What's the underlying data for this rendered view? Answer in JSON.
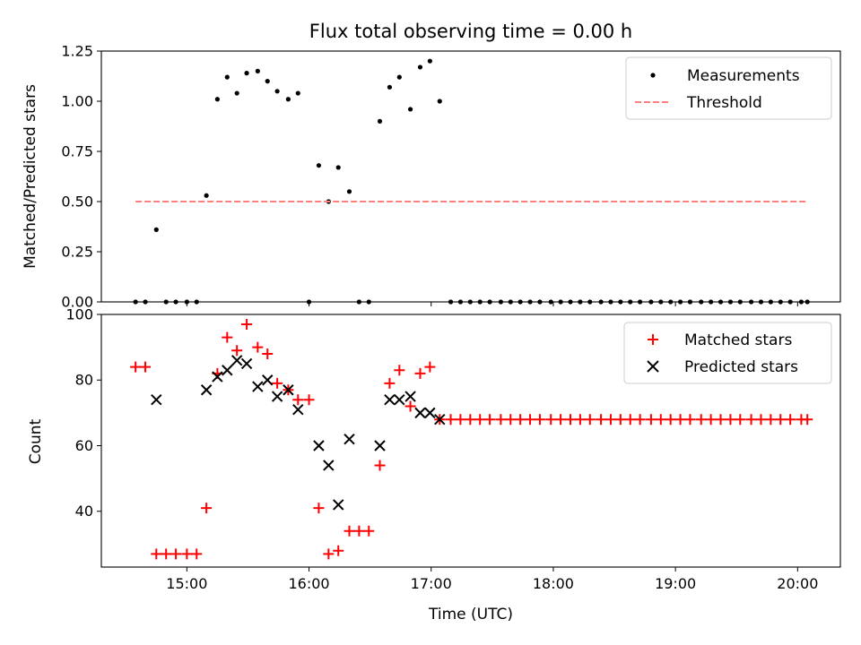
{
  "chart_data": [
    {
      "type": "scatter",
      "title": "Flux total observing time = 0.00 h",
      "xlabel": "",
      "ylabel": "Matched/Predicted stars",
      "xlim": [
        14.3,
        20.35
      ],
      "ylim": [
        0,
        1.25
      ],
      "yticks": [
        0,
        0.25,
        0.5,
        0.75,
        1.0,
        1.25
      ],
      "ytick_labels": [
        "0.00",
        "0.25",
        "0.50",
        "0.75",
        "1.00",
        "1.25"
      ],
      "xticks": [
        15,
        16,
        17,
        18,
        19,
        20
      ],
      "show_xtick_labels": false,
      "legend_position": "top-right",
      "legend": [
        {
          "label": "Measurements",
          "marker": "dot",
          "color": "#000000"
        },
        {
          "label": "Threshold",
          "marker": "dashed-line",
          "color": "#ff7f7f"
        }
      ],
      "series": [
        {
          "name": "Measurements",
          "color": "#000000",
          "marker": "dot",
          "x": [
            14.58,
            14.66,
            14.75,
            14.83,
            14.91,
            15.0,
            15.08,
            15.16,
            15.25,
            15.33,
            15.41,
            15.49,
            15.58,
            15.66,
            15.74,
            15.83,
            15.91,
            16.0,
            16.08,
            16.16,
            16.24,
            16.33,
            16.41,
            16.49,
            16.58,
            16.66,
            16.74,
            16.83,
            16.91,
            16.99,
            17.07,
            17.16,
            17.24,
            17.32,
            17.4,
            17.48,
            17.57,
            17.65,
            17.73,
            17.81,
            17.89,
            17.98,
            18.06,
            18.14,
            18.22,
            18.3,
            18.39,
            18.47,
            18.55,
            18.63,
            18.71,
            18.8,
            18.88,
            18.96,
            19.04,
            19.12,
            19.21,
            19.29,
            19.37,
            19.45,
            19.53,
            19.62,
            19.7,
            19.78,
            19.86,
            19.94,
            20.03,
            20.08
          ],
          "y": [
            0,
            0,
            0.36,
            0,
            0,
            0,
            0,
            0.53,
            1.01,
            1.12,
            1.04,
            1.14,
            1.15,
            1.1,
            1.05,
            1.01,
            1.04,
            0,
            0.68,
            0.5,
            0.67,
            0.55,
            0,
            0,
            0.9,
            1.07,
            1.12,
            0.96,
            1.17,
            1.2,
            1.0,
            0,
            0,
            0,
            0,
            0,
            0,
            0,
            0,
            0,
            0,
            0,
            0,
            0,
            0,
            0,
            0,
            0,
            0,
            0,
            0,
            0,
            0,
            0,
            0,
            0,
            0,
            0,
            0,
            0,
            0,
            0,
            0,
            0,
            0,
            0,
            0,
            0
          ]
        },
        {
          "name": "Threshold",
          "color": "#ff7f7f",
          "marker": "dashed-line",
          "x": [
            14.58,
            20.08
          ],
          "y": [
            0.5,
            0.5
          ]
        }
      ]
    },
    {
      "type": "scatter",
      "title": "",
      "xlabel": "Time (UTC)",
      "ylabel": "Count",
      "xlim": [
        14.3,
        20.35
      ],
      "ylim": [
        23,
        100
      ],
      "yticks": [
        40,
        60,
        80,
        100
      ],
      "ytick_labels": [
        "40",
        "60",
        "80",
        "100"
      ],
      "xticks": [
        15,
        16,
        17,
        18,
        19,
        20
      ],
      "xtick_labels": [
        "15:00",
        "16:00",
        "17:00",
        "18:00",
        "19:00",
        "20:00"
      ],
      "show_xtick_labels": true,
      "legend_position": "top-right",
      "legend": [
        {
          "label": "Matched stars",
          "marker": "plus",
          "color": "#ff0000"
        },
        {
          "label": "Predicted stars",
          "marker": "x",
          "color": "#000000"
        }
      ],
      "series": [
        {
          "name": "Matched stars",
          "color": "#ff0000",
          "marker": "plus",
          "x": [
            14.58,
            14.66,
            14.75,
            14.83,
            14.91,
            15.0,
            15.08,
            15.16,
            15.25,
            15.33,
            15.41,
            15.49,
            15.58,
            15.66,
            15.74,
            15.83,
            15.91,
            16.0,
            16.08,
            16.16,
            16.24,
            16.33,
            16.41,
            16.49,
            16.58,
            16.66,
            16.74,
            16.83,
            16.91,
            16.99,
            17.07,
            17.16,
            17.24,
            17.32,
            17.4,
            17.48,
            17.57,
            17.65,
            17.73,
            17.81,
            17.89,
            17.98,
            18.06,
            18.14,
            18.22,
            18.3,
            18.39,
            18.47,
            18.55,
            18.63,
            18.71,
            18.8,
            18.88,
            18.96,
            19.04,
            19.12,
            19.21,
            19.29,
            19.37,
            19.45,
            19.53,
            19.62,
            19.7,
            19.78,
            19.86,
            19.94,
            20.03,
            20.08
          ],
          "y": [
            84,
            84,
            27,
            27,
            27,
            27,
            27,
            41,
            82,
            93,
            89,
            97,
            90,
            88,
            79,
            77,
            74,
            74,
            41,
            27,
            28,
            34,
            34,
            34,
            54,
            79,
            83,
            72,
            82,
            84,
            68,
            68,
            68,
            68,
            68,
            68,
            68,
            68,
            68,
            68,
            68,
            68,
            68,
            68,
            68,
            68,
            68,
            68,
            68,
            68,
            68,
            68,
            68,
            68,
            68,
            68,
            68,
            68,
            68,
            68,
            68,
            68,
            68,
            68,
            68,
            68,
            68,
            68
          ]
        },
        {
          "name": "Predicted stars",
          "color": "#000000",
          "marker": "x",
          "x": [
            14.75,
            15.16,
            15.25,
            15.33,
            15.41,
            15.49,
            15.58,
            15.66,
            15.74,
            15.83,
            15.91,
            16.08,
            16.16,
            16.24,
            16.33,
            16.58,
            16.66,
            16.74,
            16.83,
            16.91,
            16.99,
            17.07
          ],
          "y": [
            74,
            77,
            81,
            83,
            86,
            85,
            78,
            80,
            75,
            77,
            71,
            60,
            54,
            42,
            62,
            60,
            74,
            74,
            75,
            70,
            70,
            68
          ]
        }
      ]
    }
  ]
}
